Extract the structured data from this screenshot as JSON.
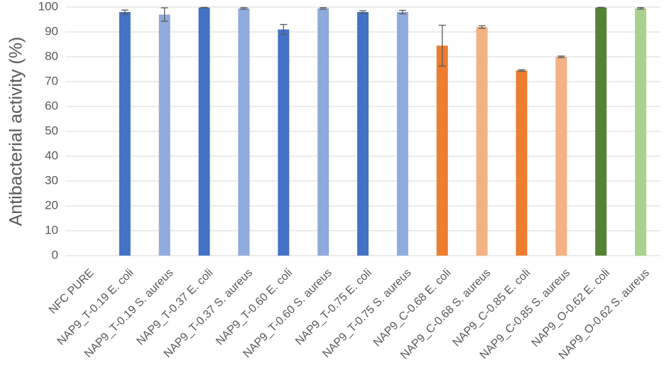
{
  "chart_data": {
    "type": "bar",
    "y_label": "Antibacterial activity (%)",
    "categories": [
      "NFC PURE",
      "NAP9_T-0.19 E. coli",
      "NAP9_T-0.19 S. aureus",
      "NAP9_T-0.37 E. coli",
      "NAP9_T-0.37 S. aureus",
      "NAP9_T-0.60 E. coli",
      "NAP9_T-0.60 S. aureus",
      "NAP9_T-0.75 E. coli",
      "NAP9_T-0.75 S. aureus",
      "NAP9_C-0.68 E. coli",
      "NAP9_C-0.68 S. aureus",
      "NAP9_C-0.85 E. coli",
      "NAP9_C-0.85 S. aureus",
      "NAP9_O-0.62 E. coli",
      "NAP9_O-0.62 S. aureus"
    ],
    "values": [
      0,
      98,
      97,
      99.8,
      99.5,
      91,
      99.5,
      98,
      98,
      84.5,
      92,
      74.5,
      80,
      99.8,
      99.5
    ],
    "errors": [
      0,
      0.8,
      2.7,
      0.1,
      0.3,
      2,
      0.3,
      0.5,
      0.7,
      8.2,
      0.5,
      0.3,
      0.3,
      0.1,
      0.3
    ],
    "colors": [
      "#4472c4",
      "#4472c4",
      "#8faadc",
      "#4472c4",
      "#8faadc",
      "#4472c4",
      "#8faadc",
      "#4472c4",
      "#8faadc",
      "#ed7d31",
      "#f4b183",
      "#ed7d31",
      "#f4b183",
      "#548235",
      "#a9d18e"
    ],
    "ylim": [
      0,
      100
    ],
    "yticks": [
      0,
      10,
      20,
      30,
      40,
      50,
      60,
      70,
      80,
      90,
      100
    ],
    "grid": true
  }
}
